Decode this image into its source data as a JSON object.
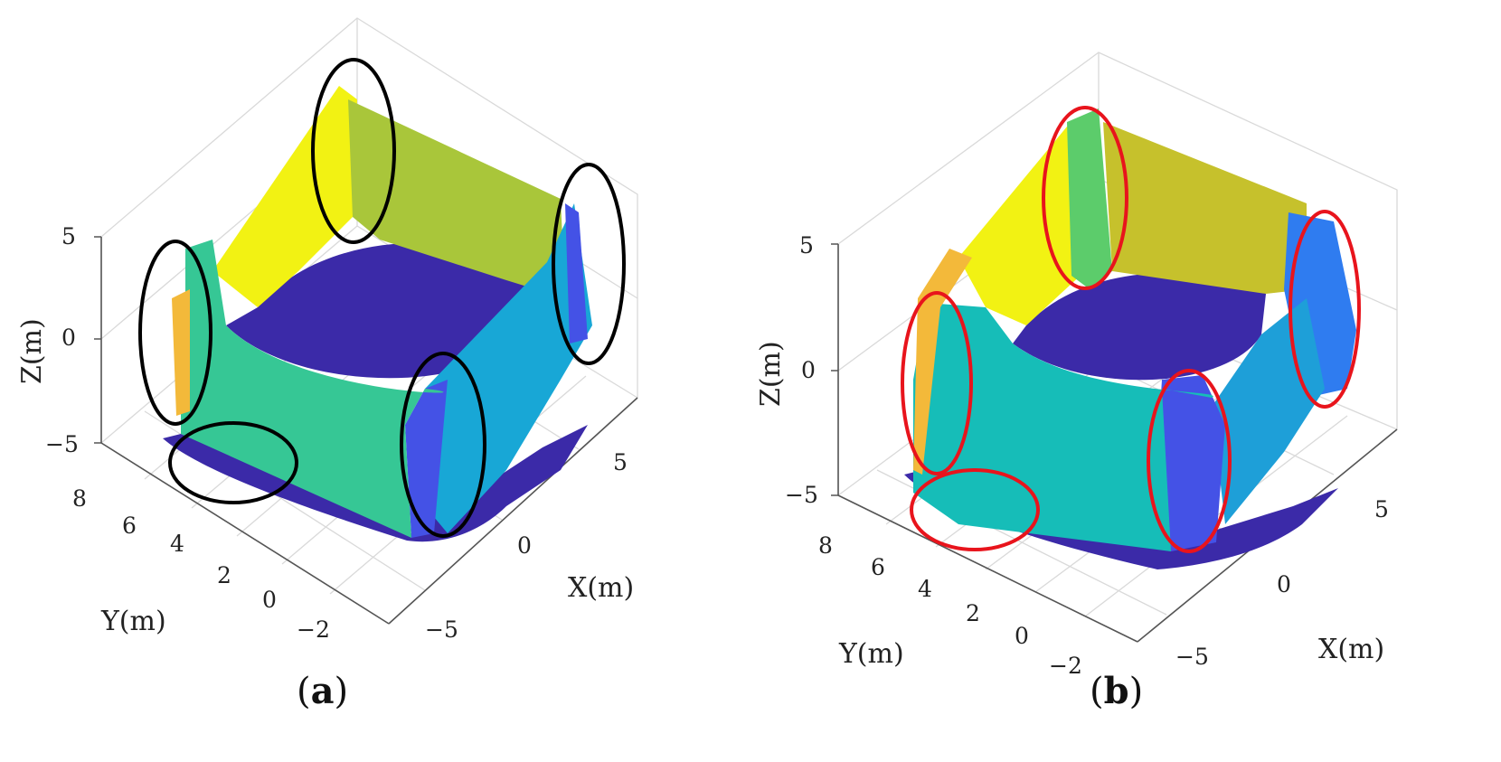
{
  "panel_a": {
    "caption_open": "(",
    "caption_letter": "a",
    "caption_close": ")",
    "z_label": "Z(m)",
    "y_label": "Y(m)",
    "x_label": "X(m)",
    "z_ticks": [
      "5",
      "0",
      "−5"
    ],
    "y_ticks": [
      "8",
      "6",
      "4",
      "2",
      "0",
      "−2"
    ],
    "x_ticks": [
      "5",
      "0",
      "−5"
    ],
    "highlight_color": "#000000"
  },
  "panel_b": {
    "caption_open": "(",
    "caption_letter": "b",
    "caption_close": ")",
    "z_label": "Z(m)",
    "y_label": "Y(m)",
    "x_label": "X(m)",
    "z_ticks": [
      "5",
      "0",
      "−5"
    ],
    "y_ticks": [
      "8",
      "6",
      "4",
      "2",
      "0",
      "−2"
    ],
    "x_ticks": [
      "5",
      "0",
      "−5"
    ],
    "highlight_color": "#e8141c"
  },
  "colors": {
    "floor": "#3b2aa8",
    "wall_yellow": "#f2f213",
    "wall_olive_a": "#a9c63a",
    "wall_olive_b": "#c6c12c",
    "wall_green_a": "#36c795",
    "wall_teal_b": "#16bdb8",
    "wall_cyan": "#18a7d6",
    "wall_blue": "#4452e6",
    "wall_orange": "#f3b93a",
    "wall_green_b": "#5ccc6b",
    "wall_royal": "#2f7cf0"
  }
}
